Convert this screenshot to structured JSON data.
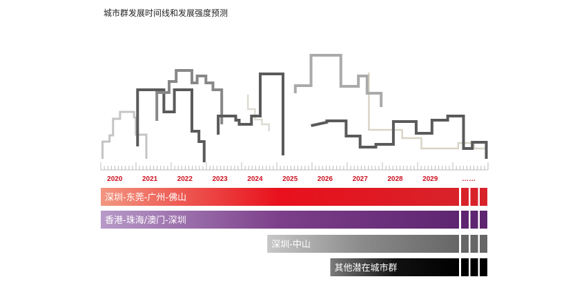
{
  "chart_data": {
    "type": "timeline",
    "title": "城市群发展时间线和发展强度预测",
    "x_ticks": [
      "2020",
      "2021",
      "2022",
      "2023",
      "2024",
      "2025",
      "2026",
      "2027",
      "2028",
      "2029",
      "……"
    ],
    "xlim": [
      2019.95,
      2031.0
    ],
    "bars": [
      {
        "name": "深圳-东莞-广州-佛山",
        "start": 2019.95,
        "end": 2031.0,
        "continues": true,
        "colors": [
          "#f29680",
          "#e8101c",
          "#d8222a"
        ]
      },
      {
        "name": "香港-珠海/澳门-深圳",
        "start": 2019.95,
        "end": 2031.0,
        "continues": true,
        "colors": [
          "#b79ac8",
          "#7c3f8a",
          "#5e2570"
        ]
      },
      {
        "name": "深圳-中山",
        "start": 2024.7,
        "end": 2031.0,
        "continues": true,
        "colors": [
          "#c7c7c7",
          "#8a8a8a",
          "#666666"
        ]
      },
      {
        "name": "其他潜在城市群",
        "start": 2026.5,
        "end": 2031.0,
        "continues": true,
        "colors": [
          "#7a7a7a",
          "#111111",
          "#000000"
        ]
      }
    ],
    "intensity_lines": [
      {
        "color": "#dcdad2",
        "width": 2.5,
        "points": [
          [
            2024.15,
            93
          ],
          [
            2024.15,
            72
          ],
          [
            2024.35,
            72
          ],
          [
            2024.35,
            57
          ],
          [
            2024.55,
            57
          ],
          [
            2024.55,
            50
          ],
          [
            2024.75,
            50
          ],
          [
            2024.75,
            40
          ]
        ]
      },
      {
        "color": "#d8d4c6",
        "width": 2.5,
        "points": [
          [
            2027.6,
            125
          ],
          [
            2027.6,
            42
          ],
          [
            2028.55,
            42
          ],
          [
            2028.55,
            30
          ],
          [
            2029.1,
            30
          ],
          [
            2029.1,
            15
          ],
          [
            2030.15,
            15
          ],
          [
            2030.15,
            23
          ],
          [
            2030.6,
            23
          ],
          [
            2030.6,
            15
          ],
          [
            2030.95,
            15
          ],
          [
            2030.95,
            0
          ]
        ]
      },
      {
        "color": "#c4c4c4",
        "width": 3,
        "points": [
          [
            2020.0,
            0
          ],
          [
            2020.0,
            25
          ],
          [
            2020.2,
            25
          ],
          [
            2020.2,
            34
          ],
          [
            2020.3,
            34
          ],
          [
            2020.3,
            58
          ],
          [
            2020.5,
            58
          ],
          [
            2020.5,
            68
          ],
          [
            2020.9,
            68
          ],
          [
            2020.9,
            60
          ],
          [
            2020.95,
            60
          ],
          [
            2020.95,
            35
          ],
          [
            2021.25,
            35
          ],
          [
            2021.25,
            0
          ]
        ]
      },
      {
        "color": "#5a5a5a",
        "width": 4,
        "points": [
          [
            2021.0,
            18
          ],
          [
            2021.0,
            100
          ],
          [
            2021.75,
            100
          ],
          [
            2021.75,
            68
          ],
          [
            2022.05,
            68
          ],
          [
            2022.05,
            100
          ],
          [
            2022.55,
            100
          ],
          [
            2022.55,
            40
          ],
          [
            2022.75,
            40
          ],
          [
            2022.75,
            25
          ],
          [
            2022.9,
            25
          ],
          [
            2022.9,
            -5
          ]
        ]
      },
      {
        "color": "#888888",
        "width": 4,
        "points": [
          [
            2021.55,
            55
          ],
          [
            2021.55,
            96
          ],
          [
            2021.9,
            96
          ],
          [
            2021.9,
            112
          ],
          [
            2022.1,
            112
          ],
          [
            2022.1,
            128
          ],
          [
            2022.55,
            128
          ],
          [
            2022.55,
            110
          ],
          [
            2022.7,
            110
          ],
          [
            2022.7,
            120
          ],
          [
            2022.95,
            120
          ],
          [
            2022.95,
            110
          ],
          [
            2023.15,
            110
          ],
          [
            2023.15,
            100
          ],
          [
            2023.4,
            100
          ],
          [
            2023.4,
            50
          ]
        ]
      },
      {
        "color": "#5a5a5a",
        "width": 4,
        "points": [
          [
            2023.3,
            35
          ],
          [
            2023.3,
            62
          ],
          [
            2023.8,
            62
          ],
          [
            2023.8,
            56
          ],
          [
            2023.9,
            56
          ],
          [
            2023.9,
            50
          ],
          [
            2024.25,
            50
          ],
          [
            2024.25,
            62
          ],
          [
            2024.5,
            62
          ],
          [
            2024.5,
            123
          ],
          [
            2025.15,
            123
          ],
          [
            2025.15,
            5
          ]
        ]
      },
      {
        "color": "#aaaaaa",
        "width": 4,
        "points": [
          [
            2025.5,
            95
          ],
          [
            2025.5,
            106
          ],
          [
            2025.95,
            106
          ],
          [
            2025.95,
            150
          ],
          [
            2026.8,
            150
          ],
          [
            2026.8,
            105
          ],
          [
            2027.3,
            105
          ],
          [
            2027.3,
            120
          ],
          [
            2027.55,
            120
          ],
          [
            2027.55,
            95
          ],
          [
            2027.95,
            95
          ],
          [
            2027.95,
            75
          ]
        ]
      },
      {
        "color": "#5a5a5a",
        "width": 4,
        "points": [
          [
            2025.95,
            48
          ],
          [
            2026.4,
            53
          ],
          [
            2026.4,
            55
          ],
          [
            2026.95,
            55
          ],
          [
            2026.95,
            33
          ],
          [
            2027.35,
            33
          ],
          [
            2027.35,
            17
          ],
          [
            2027.8,
            17
          ],
          [
            2027.8,
            21
          ],
          [
            2028.3,
            21
          ],
          [
            2028.3,
            54
          ],
          [
            2028.95,
            54
          ],
          [
            2028.95,
            37
          ],
          [
            2029.4,
            37
          ],
          [
            2029.4,
            56
          ],
          [
            2029.85,
            56
          ],
          [
            2029.85,
            62
          ],
          [
            2030.3,
            62
          ],
          [
            2030.3,
            15
          ],
          [
            2030.55,
            15
          ],
          [
            2030.55,
            24
          ],
          [
            2030.95,
            24
          ],
          [
            2030.95,
            0
          ]
        ]
      }
    ]
  }
}
